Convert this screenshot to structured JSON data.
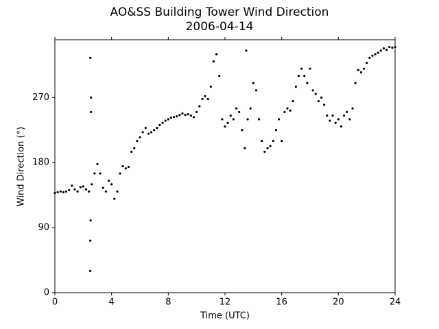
{
  "chart_data": {
    "type": "scatter",
    "title": "AO&SS Building Tower Wind Direction",
    "subtitle": "2006-04-14",
    "x_label": "Time (UTC)",
    "y_label": "Wind Direction (°)",
    "color": "#000000",
    "xlim": [
      0,
      24
    ],
    "xticks": [
      0,
      4,
      8,
      12,
      16,
      20,
      24
    ],
    "ylim": [
      0,
      350
    ],
    "yticks": [
      0,
      90,
      180,
      270
    ],
    "series": [
      {
        "name": "Wind Direction",
        "x": [
          0,
          0.2,
          0.4,
          0.6,
          0.8,
          1,
          1.2,
          1.4,
          1.6,
          1.8,
          2,
          2.2,
          2.4,
          2.6,
          2.8,
          3,
          3.2,
          3.4,
          3.6,
          3.8,
          4,
          4.2,
          4.4,
          4.6,
          4.8,
          5,
          5.2,
          5.4,
          5.6,
          5.8,
          6,
          6.2,
          6.4,
          6.6,
          6.8,
          7,
          7.2,
          7.4,
          7.6,
          7.8,
          8,
          8.2,
          8.4,
          8.6,
          8.8,
          9,
          9.2,
          9.4,
          9.6,
          9.8,
          10,
          10.2,
          10.4,
          10.6,
          10.8,
          11,
          11.2,
          11.4,
          11.6,
          11.8,
          12,
          12.2,
          12.4,
          12.6,
          12.8,
          13,
          13.2,
          13.4,
          13.6,
          13.8,
          14,
          14.2,
          14.4,
          14.6,
          14.8,
          15,
          15.2,
          15.4,
          15.6,
          15.8,
          16,
          16.2,
          16.4,
          16.6,
          16.8,
          17,
          17.2,
          17.4,
          17.6,
          17.8,
          18,
          18.2,
          18.4,
          18.6,
          18.8,
          19,
          19.2,
          19.4,
          19.6,
          19.8,
          20,
          20.2,
          20.4,
          20.6,
          20.8,
          21,
          21.2,
          21.4,
          21.6,
          21.8,
          22,
          22.2,
          22.4,
          22.6,
          22.8,
          23,
          23.2,
          23.4,
          23.6,
          23.8,
          24,
          2.5,
          2.5,
          2.5,
          2.52,
          2.55,
          2.55,
          13.5
        ],
        "values": [
          138,
          139,
          140,
          139,
          140,
          142,
          148,
          143,
          140,
          146,
          147,
          143,
          140,
          150,
          165,
          178,
          165,
          145,
          140,
          155,
          150,
          130,
          140,
          165,
          175,
          172,
          174,
          195,
          200,
          210,
          215,
          222,
          228,
          220,
          222,
          225,
          228,
          232,
          235,
          238,
          240,
          242,
          243,
          244,
          246,
          248,
          246,
          247,
          245,
          243,
          250,
          258,
          268,
          272,
          268,
          285,
          320,
          330,
          300,
          240,
          230,
          235,
          245,
          240,
          255,
          250,
          225,
          200,
          240,
          255,
          290,
          280,
          240,
          210,
          195,
          200,
          203,
          210,
          225,
          240,
          210,
          250,
          255,
          252,
          265,
          285,
          300,
          310,
          300,
          290,
          310,
          280,
          275,
          265,
          270,
          260,
          245,
          238,
          245,
          235,
          240,
          230,
          245,
          250,
          240,
          255,
          290,
          308,
          305,
          310,
          318,
          325,
          328,
          330,
          332,
          335,
          338,
          336,
          340,
          339,
          340,
          325,
          30,
          72,
          100,
          270,
          250,
          335
        ]
      }
    ]
  }
}
